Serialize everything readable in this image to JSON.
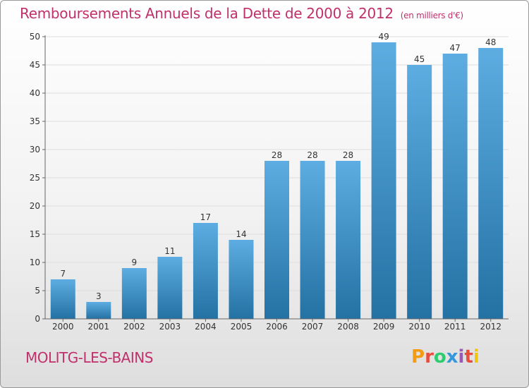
{
  "header": {
    "title": "Remboursements Annuels de la Dette de 2000 à 2012",
    "subtitle": "(en milliers d'€)"
  },
  "footer": {
    "commune": "MOLITG-LES-BAINS",
    "logo_text": "Proxiti",
    "logo_colors": [
      "#f39c12",
      "#e74c3c",
      "#2ecc71",
      "#3498db",
      "#9b59b6",
      "#e74c3c",
      "#f1c40f"
    ]
  },
  "colors": {
    "bar_light": "#5dade2",
    "bar_dark": "#2471a3",
    "title": "#c0306a",
    "grid": "#dddddd",
    "axis": "#666666"
  },
  "chart_data": {
    "type": "bar",
    "title": "Remboursements Annuels de la Dette de 2000 à 2012",
    "subtitle": "(en milliers d'€)",
    "categories": [
      "2000",
      "2001",
      "2002",
      "2003",
      "2004",
      "2005",
      "2006",
      "2007",
      "2008",
      "2009",
      "2010",
      "2011",
      "2012"
    ],
    "values": [
      7,
      3,
      9,
      11,
      17,
      14,
      28,
      28,
      28,
      49,
      45,
      47,
      48
    ],
    "ylim": [
      0,
      50
    ],
    "yticks": [
      0,
      5,
      10,
      15,
      20,
      25,
      30,
      35,
      40,
      45,
      50
    ],
    "grid": true,
    "data_labels": true
  }
}
